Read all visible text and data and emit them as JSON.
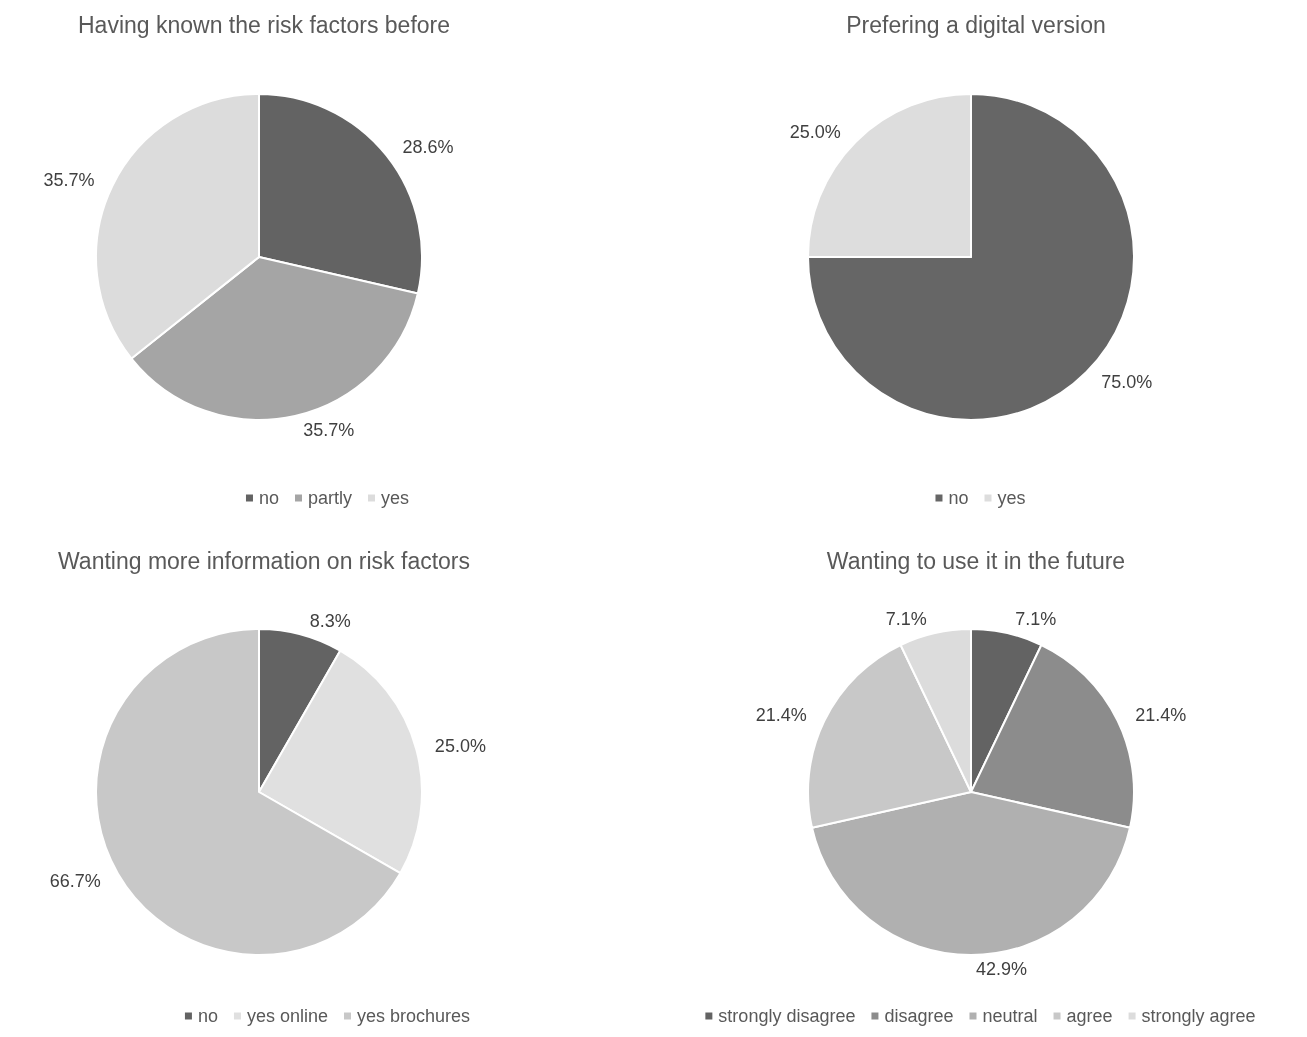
{
  "chart_data": [
    {
      "type": "pie",
      "title": "Having known the risk factors before",
      "categories": [
        "no",
        "partly",
        "yes"
      ],
      "values": [
        28.6,
        35.7,
        35.7
      ],
      "colors": [
        "#636363",
        "#a5a5a5",
        "#dcdcdc"
      ],
      "value_labels": [
        "28.6%",
        "35.7%",
        "35.7%"
      ],
      "legend": "bottom"
    },
    {
      "type": "pie",
      "title": "Prefering a digital version",
      "categories": [
        "no",
        "yes"
      ],
      "values": [
        75.0,
        25.0
      ],
      "colors": [
        "#666666",
        "#dddddd"
      ],
      "value_labels": [
        "75.0%",
        "25.0%"
      ],
      "legend": "bottom"
    },
    {
      "type": "pie",
      "title": "Wanting more information on risk factors",
      "categories": [
        "no",
        "yes online",
        "yes brochures"
      ],
      "values": [
        8.3,
        25.0,
        66.7
      ],
      "colors": [
        "#636363",
        "#e0e0e0",
        "#c8c8c8"
      ],
      "value_labels": [
        "8.3%",
        "25.0%",
        "66.7%"
      ],
      "legend": "bottom"
    },
    {
      "type": "pie",
      "title": "Wanting to use it in the future",
      "categories": [
        "strongly disagree",
        "disagree",
        "neutral",
        "agree",
        "strongly agree"
      ],
      "values": [
        7.1,
        21.4,
        42.9,
        21.4,
        7.1
      ],
      "colors": [
        "#636363",
        "#8c8c8c",
        "#b0b0b0",
        "#c8c8c8",
        "#dcdcdc"
      ],
      "value_labels": [
        "7.1%",
        "21.4%",
        "42.9%",
        "21.4%",
        "7.1%"
      ],
      "legend": "bottom"
    }
  ]
}
